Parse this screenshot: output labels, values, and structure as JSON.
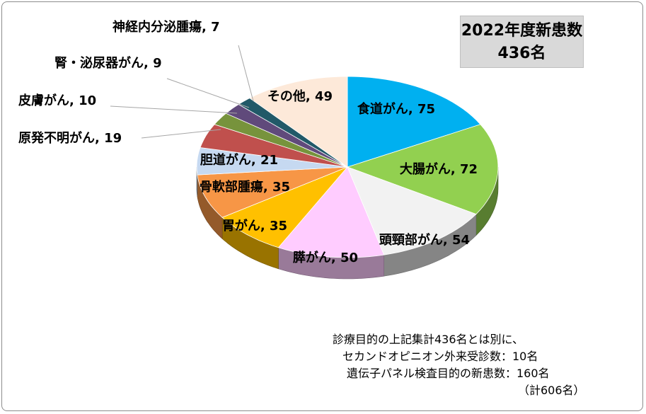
{
  "chart_data": {
    "type": "pie",
    "categories": [
      "食道がん",
      "大腸がん",
      "頭頸部がん",
      "膵がん",
      "胃がん",
      "骨軟部腫瘍",
      "胆道がん",
      "原発不明がん",
      "皮膚がん",
      "腎・泌尿器がん",
      "神経内分泌腫瘍",
      "その他"
    ],
    "values": [
      75,
      72,
      54,
      50,
      35,
      35,
      21,
      19,
      10,
      9,
      7,
      49
    ],
    "labels": [
      "食道がん, 75",
      "大腸がん, 72",
      "頭頸部がん, 54",
      "膵がん, 50",
      "胃がん, 35",
      "骨軟部腫瘍, 35",
      "胆道がん, 21",
      "原発不明がん, 19",
      "皮膚がん, 10",
      "腎・泌尿器がん, 9",
      "神経内分泌腫瘍, 7",
      "その他, 49"
    ],
    "colors": [
      "#00b0f0",
      "#92d050",
      "#f2f2f2",
      "#ffccff",
      "#ffc000",
      "#f79646",
      "#c6d9f1",
      "#c0504d",
      "#77933c",
      "#604a7b",
      "#215968",
      "#fde9d9"
    ],
    "style": "3d-exploded"
  },
  "summary": {
    "line1": "2022年度新患数",
    "line2": "436名"
  },
  "notes": [
    "診療目的の上記集計436名とは別に、",
    "セカンドオピニオン外来受診数：10名",
    "遺伝子パネル検査目的の新患数：160名",
    "（計606名）"
  ]
}
